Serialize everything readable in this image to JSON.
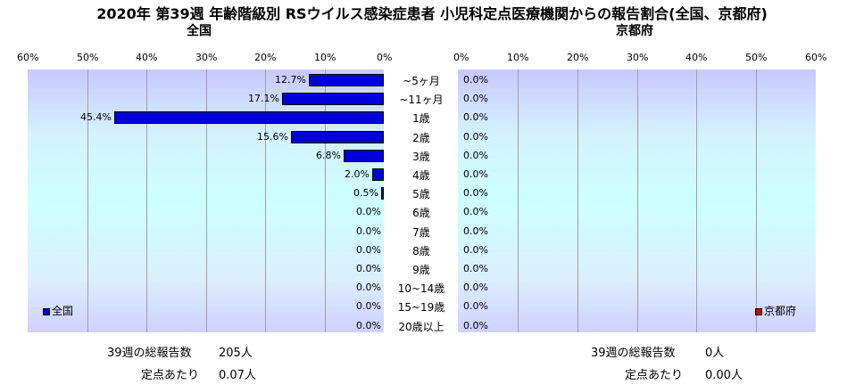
{
  "title": "2020年 第39週 年齢階級別 RSウイルス感染症患者 小児科定点医療機関からの報告割合(全国、京都府)",
  "chart_data": [
    {
      "type": "bar",
      "orientation": "horizontal",
      "title": "全国",
      "direction": "right-to-left",
      "xlim": [
        0,
        60
      ],
      "x_ticks": [
        "60%",
        "50%",
        "40%",
        "30%",
        "20%",
        "10%",
        "0%"
      ],
      "categories": [
        "~5ヶ月",
        "~11ヶ月",
        "1歳",
        "2歳",
        "3歳",
        "4歳",
        "5歳",
        "6歳",
        "7歳",
        "8歳",
        "9歳",
        "10~14歳",
        "15~19歳",
        "20歳以上"
      ],
      "series": [
        {
          "name": "全国",
          "color": "#0000d8",
          "values": [
            12.7,
            17.1,
            45.4,
            15.6,
            6.8,
            2.0,
            0.5,
            0.0,
            0.0,
            0.0,
            0.0,
            0.0,
            0.0,
            0.0
          ],
          "labels": [
            "12.7%",
            "17.1%",
            "45.4%",
            "15.6%",
            "6.8%",
            "2.0%",
            "0.5%",
            "0.0%",
            "0.0%",
            "0.0%",
            "0.0%",
            "0.0%",
            "0.0%",
            "0.0%"
          ]
        }
      ],
      "legend": "bottom-left",
      "grid": true
    },
    {
      "type": "bar",
      "orientation": "horizontal",
      "title": "京都府",
      "direction": "left-to-right",
      "xlim": [
        0,
        60
      ],
      "x_ticks": [
        "0%",
        "10%",
        "20%",
        "30%",
        "40%",
        "50%",
        "60%"
      ],
      "categories": [
        "~5ヶ月",
        "~11ヶ月",
        "1歳",
        "2歳",
        "3歳",
        "4歳",
        "5歳",
        "6歳",
        "7歳",
        "8歳",
        "9歳",
        "10~14歳",
        "15~19歳",
        "20歳以上"
      ],
      "series": [
        {
          "name": "京都府",
          "color": "#cc0000",
          "values": [
            0,
            0,
            0,
            0,
            0,
            0,
            0,
            0,
            0,
            0,
            0,
            0,
            0,
            0
          ],
          "labels": [
            "0.0%",
            "0.0%",
            "0.0%",
            "0.0%",
            "0.0%",
            "0.0%",
            "0.0%",
            "0.0%",
            "0.0%",
            "0.0%",
            "0.0%",
            "0.0%",
            "0.0%",
            "0.0%"
          ]
        }
      ],
      "legend": "bottom-right",
      "grid": true
    }
  ],
  "stats": {
    "national": {
      "total_label": "39週の総報告数",
      "total_value": "205人",
      "per_label": "定点あたり",
      "per_value": "0.07人"
    },
    "kyoto": {
      "total_label": "39週の総報告数",
      "total_value": "0人",
      "per_label": "定点あたり",
      "per_value": "0.00人"
    }
  }
}
